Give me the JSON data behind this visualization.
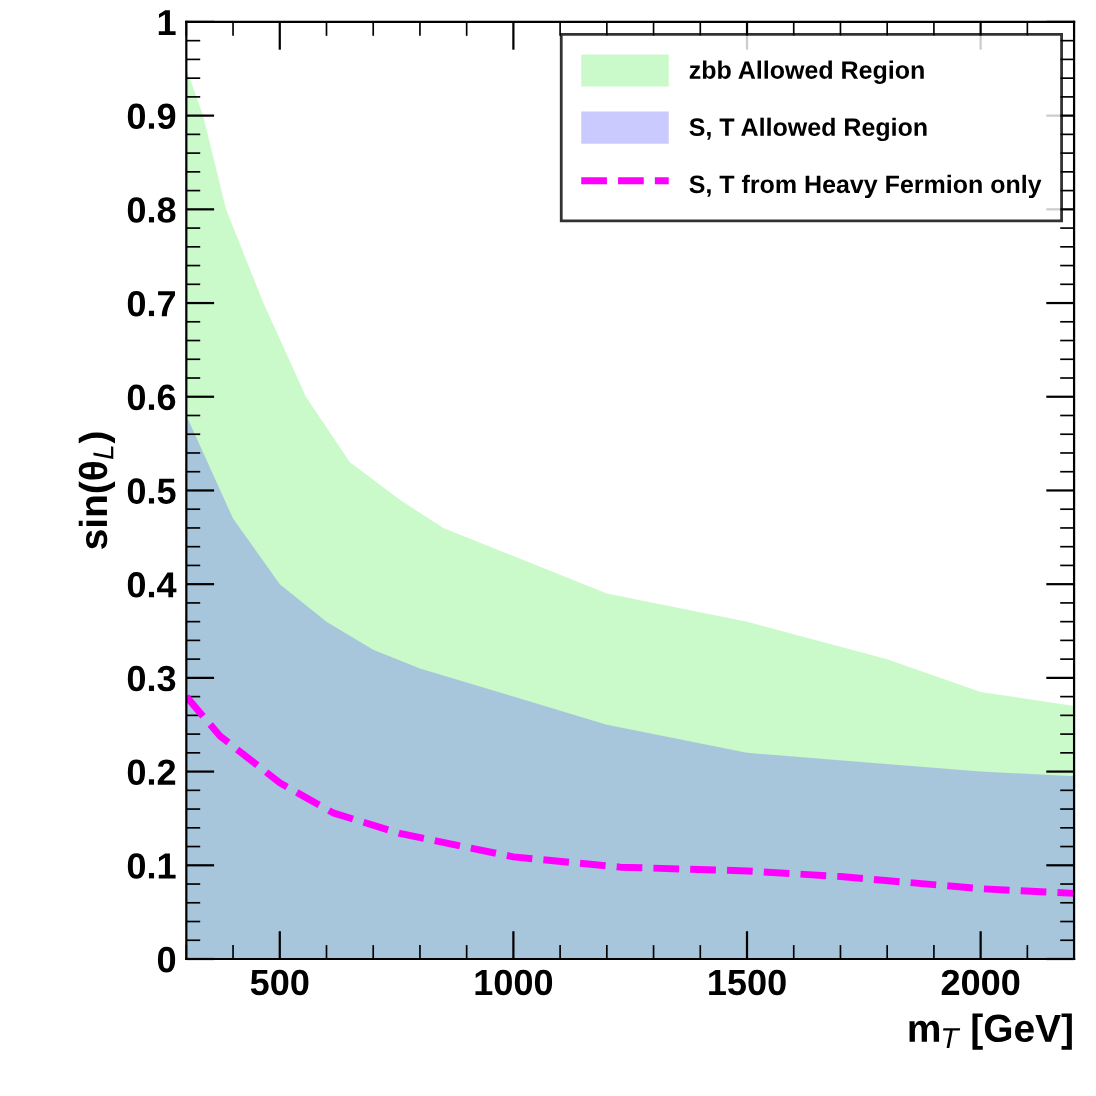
{
  "chart_data": {
    "type": "area",
    "xlabel": "m$_{T}$ [GeV]",
    "ylabel": "sin(θ$_{L}$)",
    "xlim": [
      300,
      2200
    ],
    "ylim": [
      0,
      1
    ],
    "xticks": [
      500,
      1000,
      1500,
      2000
    ],
    "yticks": [
      0,
      0.1,
      0.2,
      0.3,
      0.4,
      0.5,
      0.6,
      0.7,
      0.8,
      0.9,
      1
    ],
    "grid": false,
    "legend": "top right",
    "series": [
      {
        "name": "zbb Allowed Region",
        "color": "#66ee66",
        "x": [
          300,
          336,
          385,
          465,
          556,
          650,
          757,
          850,
          1000,
          1200,
          1500,
          1800,
          2000,
          2200
        ],
        "values": [
          0.95,
          0.9,
          0.8,
          0.7,
          0.6,
          0.53,
          0.49,
          0.46,
          0.43,
          0.39,
          0.36,
          0.32,
          0.285,
          0.27
        ]
      },
      {
        "name": "S, T Allowed Region",
        "color": "#6666ff",
        "x": [
          300,
          400,
          500,
          600,
          700,
          800,
          1000,
          1200,
          1500,
          2000,
          2200
        ],
        "values": [
          0.58,
          0.47,
          0.4,
          0.36,
          0.33,
          0.31,
          0.28,
          0.25,
          0.22,
          0.2,
          0.195
        ]
      },
      {
        "name": "S, T from Heavy Fermion only",
        "type": "line",
        "line_style": "dashed",
        "color": "#ff00ff",
        "x": [
          300,
          372,
          500,
          614,
          757,
          1000,
          1229,
          1500,
          1700,
          2000,
          2200
        ],
        "values": [
          0.28,
          0.238,
          0.188,
          0.156,
          0.134,
          0.109,
          0.098,
          0.094,
          0.088,
          0.075,
          0.07
        ]
      }
    ]
  }
}
